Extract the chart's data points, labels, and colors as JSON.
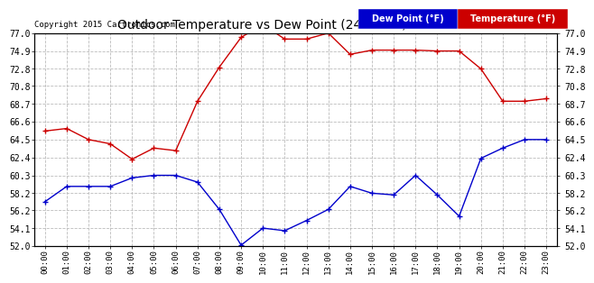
{
  "title": "Outdoor Temperature vs Dew Point (24 Hours) 20150806",
  "copyright": "Copyright 2015 Cartronics.com",
  "hours": [
    "00:00",
    "01:00",
    "02:00",
    "03:00",
    "04:00",
    "05:00",
    "06:00",
    "07:00",
    "08:00",
    "09:00",
    "10:00",
    "11:00",
    "12:00",
    "13:00",
    "14:00",
    "15:00",
    "16:00",
    "17:00",
    "18:00",
    "19:00",
    "20:00",
    "21:00",
    "22:00",
    "23:00"
  ],
  "temperature": [
    65.5,
    65.8,
    64.5,
    64.0,
    62.2,
    63.5,
    63.2,
    69.0,
    73.0,
    76.5,
    78.0,
    76.3,
    76.3,
    77.0,
    74.5,
    75.0,
    75.0,
    75.0,
    74.9,
    74.9,
    72.8,
    69.0,
    69.0,
    69.3
  ],
  "dew_point": [
    57.2,
    59.0,
    59.0,
    59.0,
    60.0,
    60.3,
    60.3,
    59.5,
    56.3,
    52.1,
    54.1,
    53.8,
    55.0,
    56.3,
    59.0,
    58.2,
    58.0,
    60.3,
    58.0,
    55.5,
    62.3,
    63.5,
    64.5,
    64.5
  ],
  "temp_color": "#cc0000",
  "dew_color": "#0000cc",
  "bg_color": "#ffffff",
  "grid_color": "#bbbbbb",
  "ylim_min": 52.0,
  "ylim_max": 77.0,
  "yticks": [
    52.0,
    54.1,
    56.2,
    58.2,
    60.3,
    62.4,
    64.5,
    66.6,
    68.7,
    70.8,
    72.8,
    74.9,
    77.0
  ],
  "legend_dew_bg": "#0000cc",
  "legend_temp_bg": "#cc0000",
  "legend_dew_label": "Dew Point (°F)",
  "legend_temp_label": "Temperature (°F)"
}
